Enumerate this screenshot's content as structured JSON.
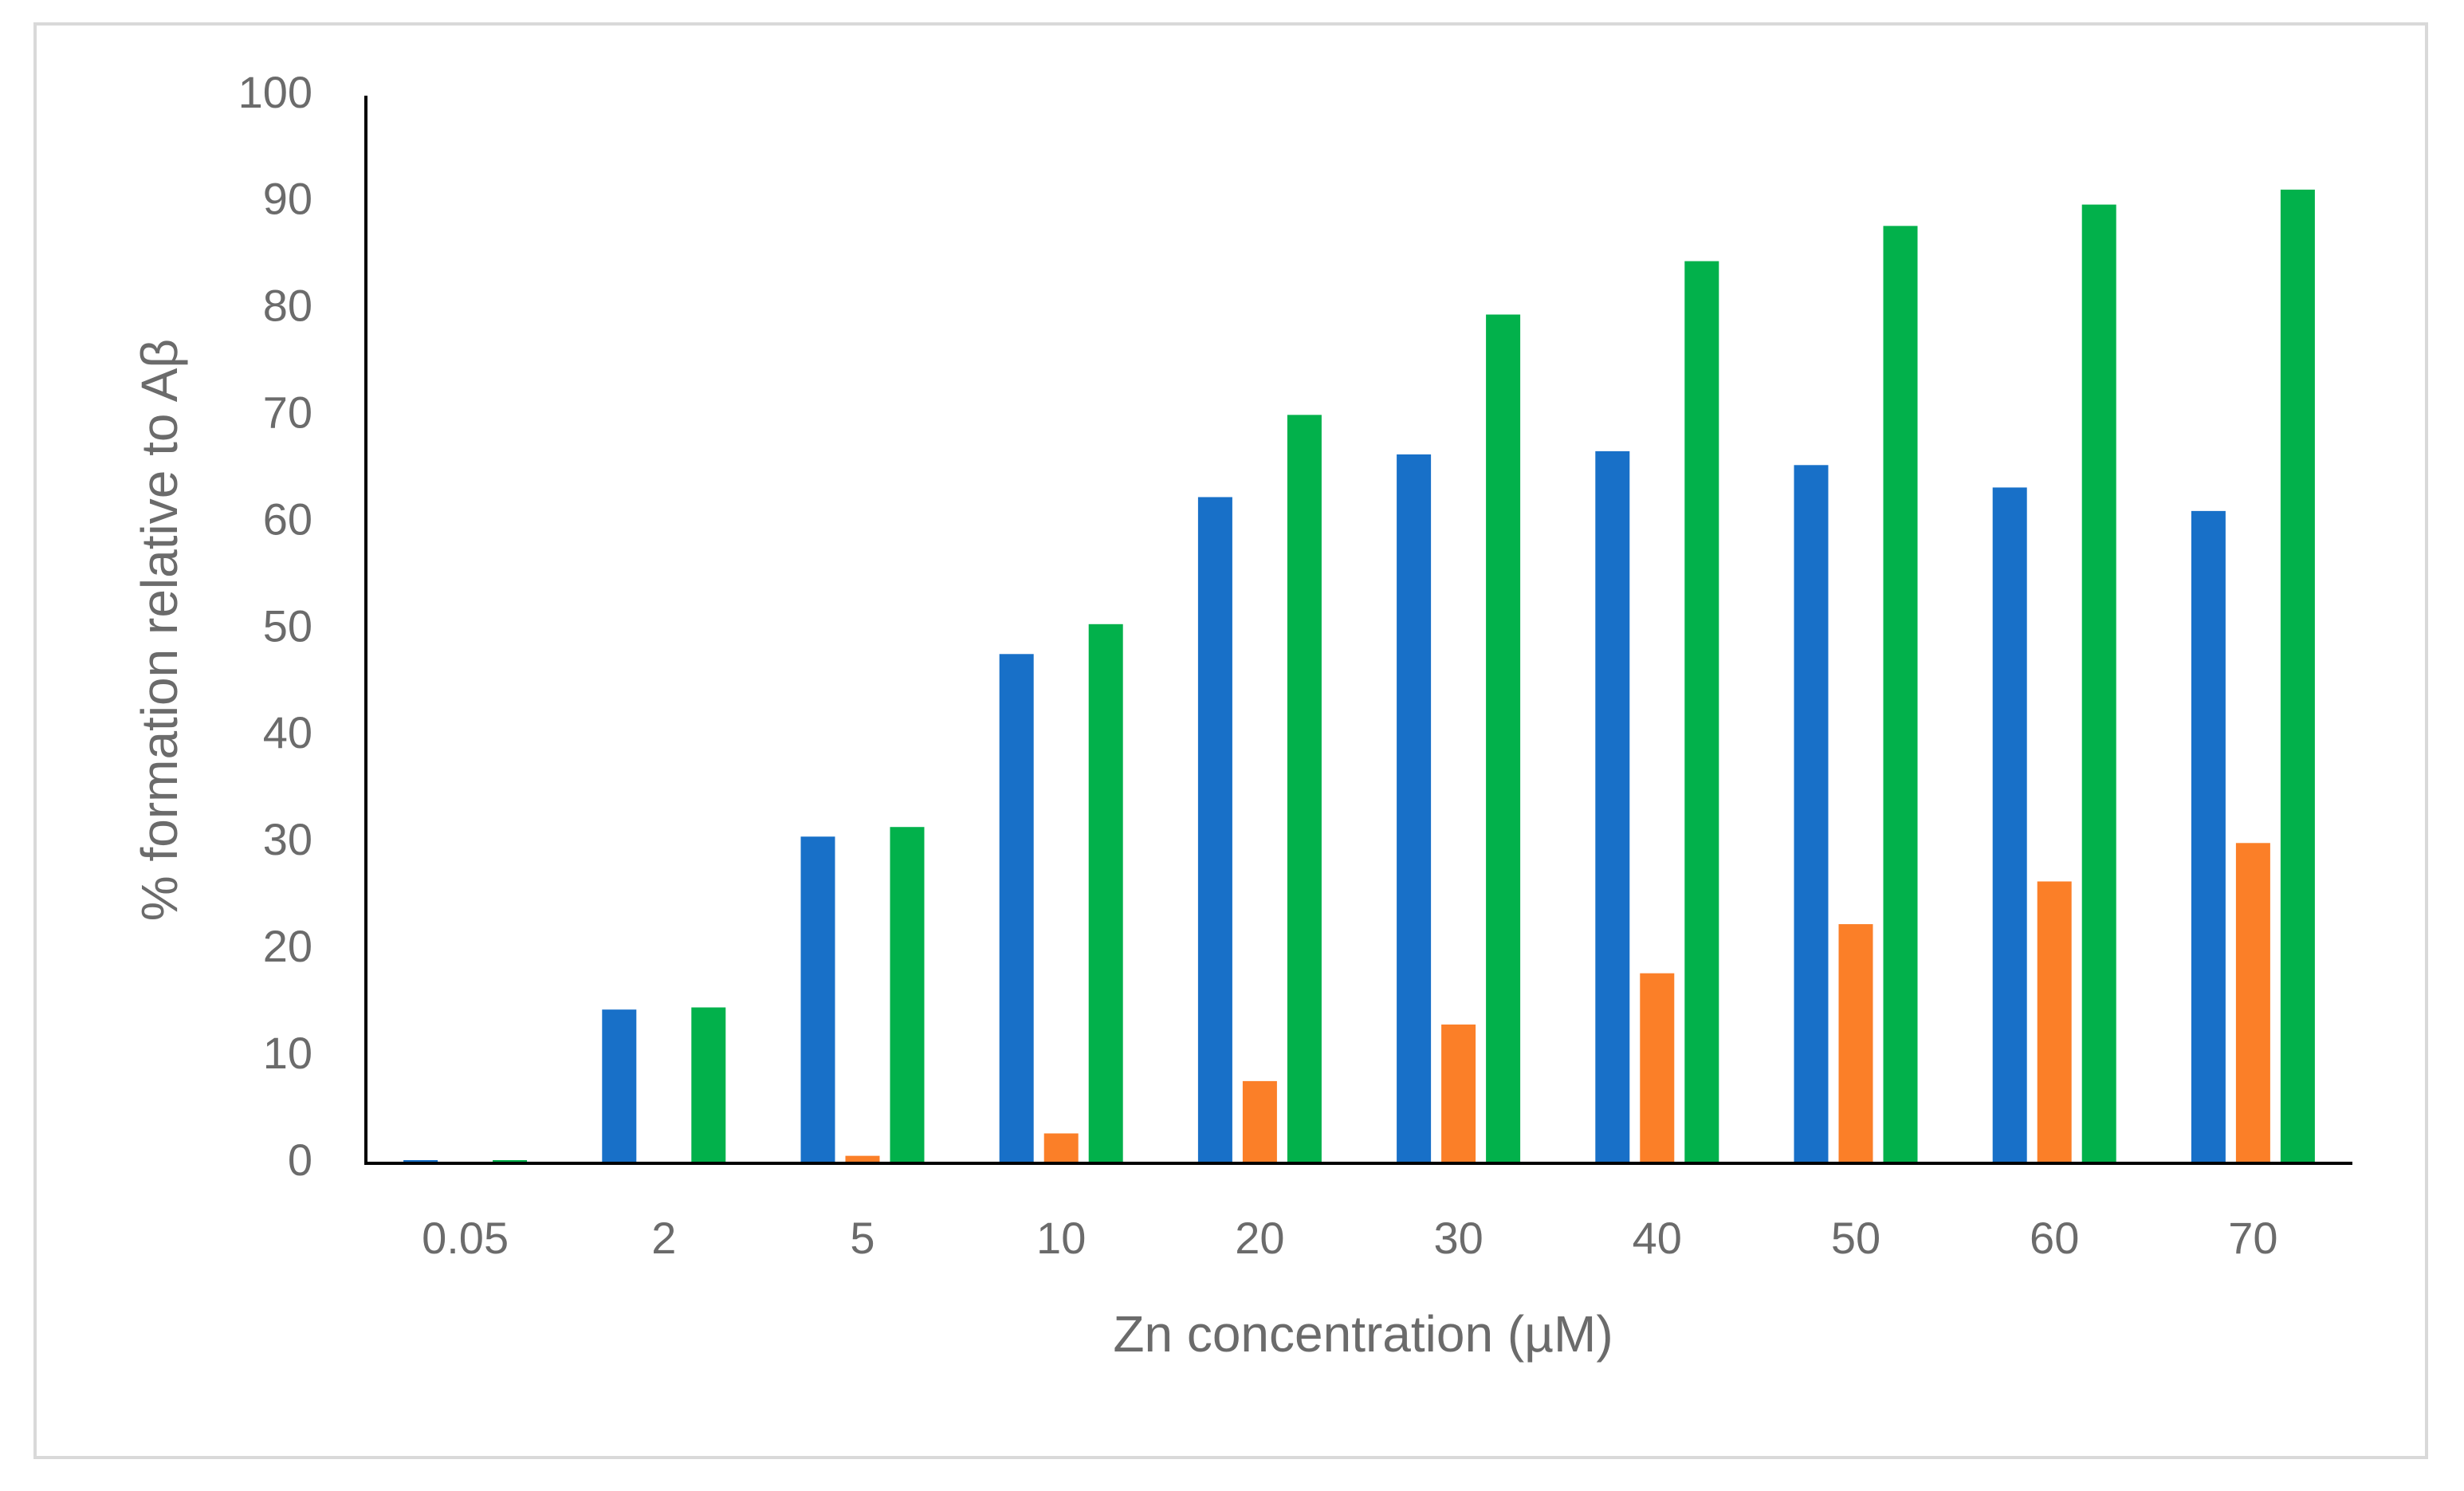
{
  "chart_data": {
    "type": "bar",
    "x_label": "Zn concentration (µM)",
    "y_label": "% formation relative to Aβ",
    "categories": [
      "0.05",
      "2",
      "5",
      "10",
      "20",
      "30",
      "40",
      "50",
      "60",
      "70"
    ],
    "series": [
      {
        "color": "#1870c8",
        "values": [
          0.3,
          14.4,
          30.6,
          47.7,
          62.4,
          66.4,
          66.7,
          65.4,
          63.3,
          61.1
        ]
      },
      {
        "color": "#fb7f28",
        "values": [
          0,
          0,
          0.7,
          2.8,
          7.7,
          13,
          17.8,
          22.4,
          26.4,
          30
        ]
      },
      {
        "color": "#02b14b",
        "values": [
          0.3,
          14.6,
          31.5,
          50.5,
          70.1,
          79.5,
          84.5,
          87.8,
          89.8,
          91.2
        ]
      }
    ],
    "ylim": [
      0,
      100
    ],
    "yticks": [
      0,
      10,
      20,
      30,
      40,
      50,
      60,
      70,
      80,
      90,
      100
    ],
    "grid": false
  }
}
